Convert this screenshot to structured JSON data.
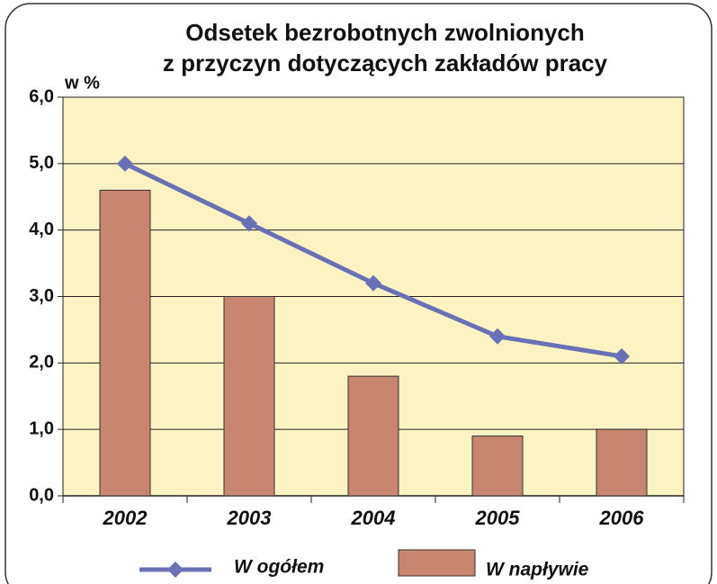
{
  "chart_data": {
    "type": "bar",
    "title": [
      "Odsetek bezrobotnych zwolnionych",
      "z przyczyn dotyczących zakładów pracy"
    ],
    "y_label": "w %",
    "categories": [
      "2002",
      "2003",
      "2004",
      "2005",
      "2006"
    ],
    "series": [
      {
        "name": "W ogółem",
        "type": "line",
        "color": "#6a70b6",
        "values": [
          5.0,
          4.1,
          3.2,
          2.4,
          2.1
        ]
      },
      {
        "name": "W napływie",
        "type": "bar",
        "color": "#c8866f",
        "values": [
          4.6,
          3.0,
          1.8,
          0.9,
          1.0
        ]
      }
    ],
    "ylim": [
      0,
      6
    ],
    "yticks": [
      {
        "value": 0,
        "label": "0,0"
      },
      {
        "value": 1,
        "label": "1,0"
      },
      {
        "value": 2,
        "label": "2,0"
      },
      {
        "value": 3,
        "label": "3,0"
      },
      {
        "value": 4,
        "label": "4,0"
      },
      {
        "value": 5,
        "label": "5,0"
      },
      {
        "value": 6,
        "label": "6,0"
      }
    ],
    "grid": true
  }
}
